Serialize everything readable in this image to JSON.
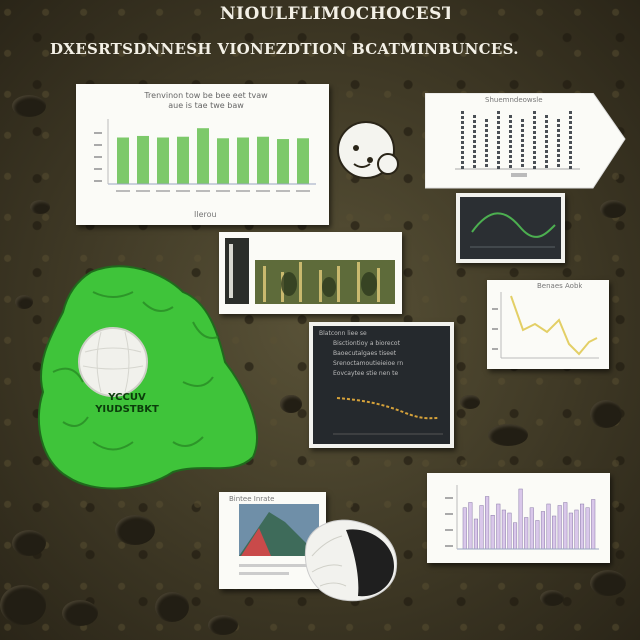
{
  "header": {
    "title": "NIOULFLIMOCHOCEST",
    "subtitle": "DXESRTSDNNESH VIONEZDTION BCATMINBUNCES."
  },
  "chart_top_left": {
    "title_line1": "Trenvinon tow be bee eet tvaw",
    "title_line2": "aue is tae twe baw",
    "xlabel": "Ilerou",
    "values": [
      60,
      62,
      60,
      61,
      72,
      59,
      60,
      61,
      58,
      59
    ],
    "bar_color": "#7dc96a"
  },
  "chart_top_right": {
    "title": "Shuemndeowsle"
  },
  "blob": {
    "label_line1": "YCCUV",
    "label_line2": "YIUDSTBKT",
    "color": "#3fc43a"
  },
  "screen_chart": {
    "caption_lines": [
      "Blatconn liee se",
      "Bisctiontioy a biorecot",
      "Baoecutalgaes tiseet",
      "Srenoctamoutieieioe rn",
      "Eovcaytee stie nen te"
    ]
  },
  "yellow_chart": {
    "title": "Benaes Aobk"
  },
  "bar_bottom_right": {
    "values": [
      55,
      62,
      40,
      58,
      70,
      45,
      60,
      52,
      48,
      35,
      80,
      42,
      55,
      38,
      50,
      60,
      44,
      58,
      62,
      48,
      52,
      60,
      55,
      66
    ],
    "bar_color": "#d9c7ea"
  },
  "small_card": {
    "title": "Bintee Inrate"
  }
}
